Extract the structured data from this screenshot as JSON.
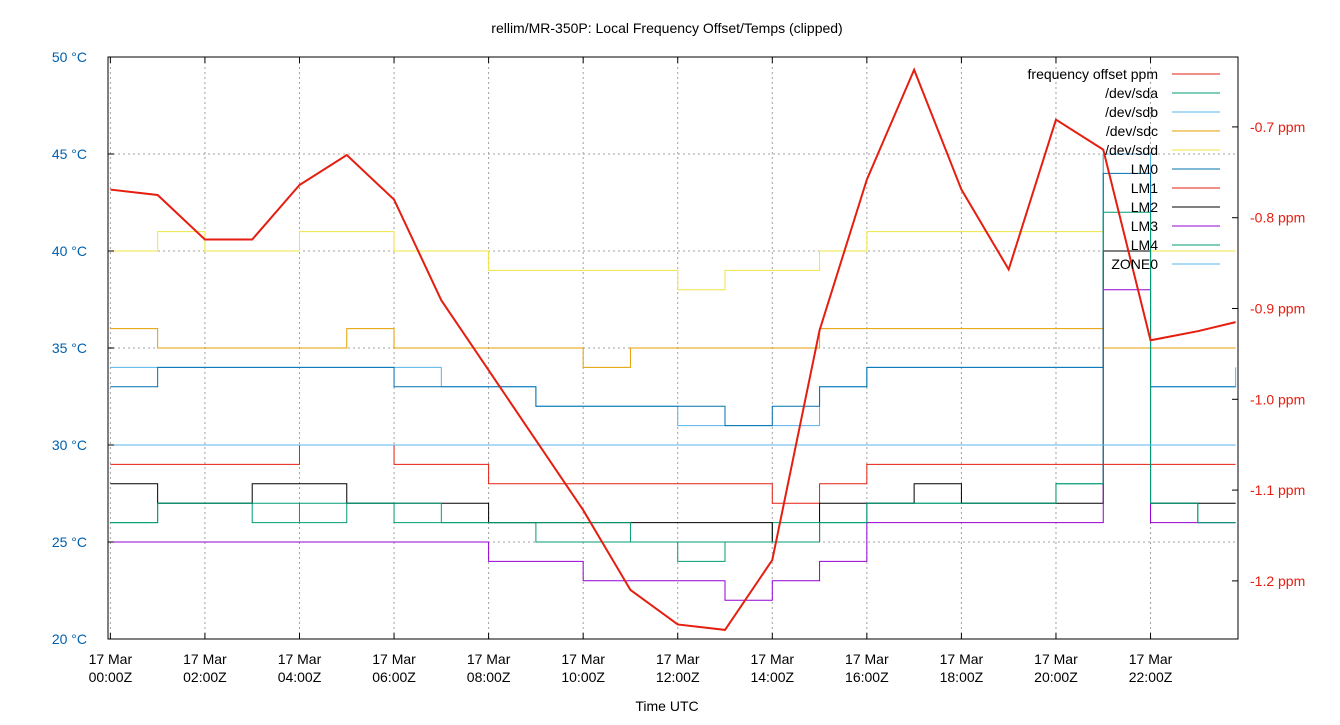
{
  "chart_data": {
    "type": "line",
    "title": "rellim/MR-350P: Local Frequency Offset/Temps (clipped)",
    "xlabel": "Time UTC",
    "x_ticks": [
      [
        "17 Mar",
        "00:00Z"
      ],
      [
        "17 Mar",
        "02:00Z"
      ],
      [
        "17 Mar",
        "04:00Z"
      ],
      [
        "17 Mar",
        "06:00Z"
      ],
      [
        "17 Mar",
        "08:00Z"
      ],
      [
        "17 Mar",
        "10:00Z"
      ],
      [
        "17 Mar",
        "12:00Z"
      ],
      [
        "17 Mar",
        "14:00Z"
      ],
      [
        "17 Mar",
        "16:00Z"
      ],
      [
        "17 Mar",
        "18:00Z"
      ],
      [
        "17 Mar",
        "20:00Z"
      ],
      [
        "17 Mar",
        "22:00Z"
      ]
    ],
    "x_tick_hours": [
      0,
      2,
      4,
      6,
      8,
      10,
      12,
      14,
      16,
      18,
      20,
      22
    ],
    "xlim_hours": [
      -0.05,
      23.85
    ],
    "y_left": {
      "ticks": [
        "20 °C",
        "25 °C",
        "30 °C",
        "35 °C",
        "40 °C",
        "45 °C",
        "50 °C"
      ],
      "tick_values": [
        20,
        25,
        30,
        35,
        40,
        45,
        50
      ],
      "lim": [
        20,
        50
      ],
      "color": "#0060ad"
    },
    "y_right": {
      "ticks": [
        "-1.2 ppm",
        "-1.1 ppm",
        "-1.0 ppm",
        "-0.9 ppm",
        "-0.8 ppm",
        "-0.7 ppm"
      ],
      "tick_values": [
        -1.2,
        -1.1,
        -1.0,
        -0.9,
        -0.8,
        -0.7
      ],
      "lim": [
        -1.264,
        -0.623
      ],
      "color": "#e51e10"
    },
    "grid": true,
    "legend_position": "top-right",
    "x_hours": [
      0,
      1,
      2,
      3,
      4,
      5,
      6,
      7,
      8,
      9,
      10,
      11,
      12,
      13,
      14,
      15,
      16,
      17,
      18,
      19,
      20,
      21,
      22,
      23,
      23.8
    ],
    "series": [
      {
        "name": "frequency offset ppm",
        "axis": "right",
        "color": "#e51e10",
        "width": 2,
        "values": [
          -0.769,
          -0.775,
          -0.824,
          -0.824,
          -0.764,
          -0.731,
          -0.78,
          -0.891,
          -0.968,
          -1.045,
          -1.122,
          -1.21,
          -1.248,
          -1.254,
          -1.177,
          -0.924,
          -0.758,
          -0.637,
          -0.769,
          -0.857,
          -0.692,
          -0.725,
          -0.935,
          -0.925,
          -0.915
        ]
      },
      {
        "name": "/dev/sda",
        "axis": "left",
        "color": "#009e73",
        "values": [
          26,
          27,
          27,
          26,
          27,
          27,
          26,
          26,
          26,
          25,
          25,
          25,
          24,
          25,
          26,
          26,
          27,
          27,
          27,
          27,
          28,
          45,
          27,
          26,
          26
        ]
      },
      {
        "name": "/dev/sdb",
        "axis": "left",
        "color": "#56b4e9",
        "values": [
          34,
          34,
          34,
          34,
          34,
          34,
          34,
          33,
          33,
          32,
          32,
          32,
          31,
          31,
          31,
          33,
          34,
          34,
          34,
          34,
          34,
          45,
          33,
          33,
          34
        ]
      },
      {
        "name": "/dev/sdc",
        "axis": "left",
        "color": "#e69f00",
        "values": [
          36,
          35,
          35,
          35,
          35,
          36,
          35,
          35,
          35,
          35,
          34,
          35,
          35,
          35,
          35,
          36,
          36,
          36,
          36,
          36,
          36,
          35,
          35,
          35,
          35
        ]
      },
      {
        "name": "/dev/sdd",
        "axis": "left",
        "color": "#f0e442",
        "values": [
          40,
          41,
          40,
          40,
          41,
          41,
          40,
          40,
          39,
          39,
          39,
          39,
          38,
          39,
          39,
          40,
          41,
          41,
          41,
          41,
          41,
          40,
          40,
          40,
          40
        ]
      },
      {
        "name": "LM0",
        "axis": "left",
        "color": "#0072b2",
        "values": [
          33,
          34,
          34,
          34,
          34,
          34,
          33,
          33,
          33,
          32,
          32,
          32,
          32,
          31,
          32,
          33,
          34,
          34,
          34,
          34,
          34,
          44,
          33,
          33,
          33
        ]
      },
      {
        "name": "LM1",
        "axis": "left",
        "color": "#e51e10",
        "values": [
          29,
          29,
          29,
          29,
          30,
          30,
          29,
          29,
          28,
          28,
          28,
          28,
          28,
          28,
          27,
          28,
          29,
          29,
          29,
          29,
          29,
          29,
          29,
          29,
          29
        ]
      },
      {
        "name": "LM2",
        "axis": "left",
        "color": "#000000",
        "values": [
          28,
          27,
          27,
          28,
          28,
          27,
          27,
          27,
          26,
          26,
          26,
          26,
          26,
          26,
          25,
          27,
          27,
          28,
          27,
          27,
          27,
          40,
          27,
          27,
          27
        ]
      },
      {
        "name": "LM3",
        "axis": "left",
        "color": "#9400d3",
        "values": [
          25,
          25,
          25,
          25,
          25,
          25,
          25,
          25,
          24,
          24,
          23,
          23,
          23,
          22,
          23,
          24,
          26,
          26,
          26,
          26,
          26,
          38,
          26,
          26,
          26
        ]
      },
      {
        "name": "LM4",
        "axis": "left",
        "color": "#009e73",
        "values": [
          26,
          27,
          27,
          27,
          26,
          27,
          27,
          26,
          26,
          26,
          26,
          25,
          25,
          25,
          25,
          26,
          27,
          27,
          27,
          27,
          28,
          42,
          27,
          26,
          26
        ]
      },
      {
        "name": "ZONE0",
        "axis": "left",
        "color": "#56b4e9",
        "values": [
          30,
          30,
          30,
          30,
          30,
          30,
          30,
          30,
          30,
          30,
          30,
          30,
          30,
          30,
          30,
          30,
          30,
          30,
          30,
          30,
          30,
          30,
          30,
          30,
          30
        ]
      }
    ]
  }
}
